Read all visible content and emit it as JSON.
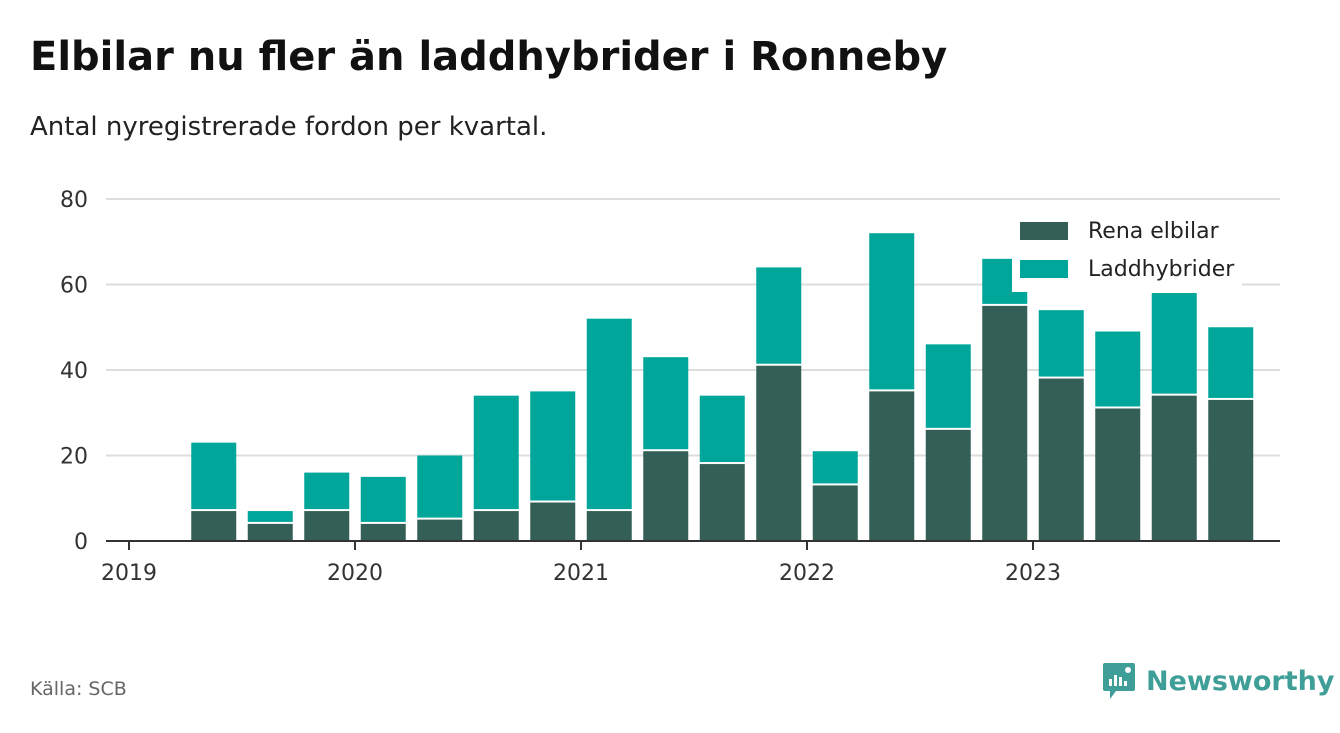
{
  "title": "Elbilar nu fler än laddhybrider i Ronneby",
  "subtitle": "Antal nyregistrerade fordon per kvartal.",
  "source": "Källa: SCB",
  "brand": "Newsworthy",
  "colors": {
    "elbil": "#335f57",
    "laddhybrid": "#00a69a",
    "grid": "#dddddd",
    "axis": "#333333",
    "brand": "#3f9e97"
  },
  "chart_data": {
    "type": "bar",
    "stacked": true,
    "title": "Elbilar nu fler än laddhybrider i Ronneby",
    "ylim": [
      0,
      80
    ],
    "yticks": [
      0,
      20,
      40,
      60,
      80
    ],
    "xticks": [
      "2019",
      "2020",
      "2021",
      "2022",
      "2023"
    ],
    "categories": [
      "2019 Q2",
      "2019 Q3",
      "2019 Q4",
      "2020 Q1",
      "2020 Q2",
      "2020 Q3",
      "2020 Q4",
      "2021 Q1",
      "2021 Q2",
      "2021 Q3",
      "2021 Q4",
      "2022 Q1",
      "2022 Q2",
      "2022 Q3",
      "2022 Q4",
      "2023 Q1",
      "2023 Q2",
      "2023 Q3",
      "2023 Q4"
    ],
    "series": [
      {
        "name": "Rena elbilar",
        "values": [
          7,
          4,
          7,
          4,
          5,
          7,
          9,
          7,
          21,
          18,
          41,
          13,
          35,
          26,
          55,
          38,
          31,
          34,
          33
        ]
      },
      {
        "name": "Laddhybrider",
        "values": [
          16,
          3,
          9,
          11,
          15,
          27,
          26,
          45,
          22,
          16,
          23,
          8,
          37,
          20,
          11,
          16,
          18,
          24,
          17
        ]
      }
    ],
    "legend_position": "top-right"
  }
}
